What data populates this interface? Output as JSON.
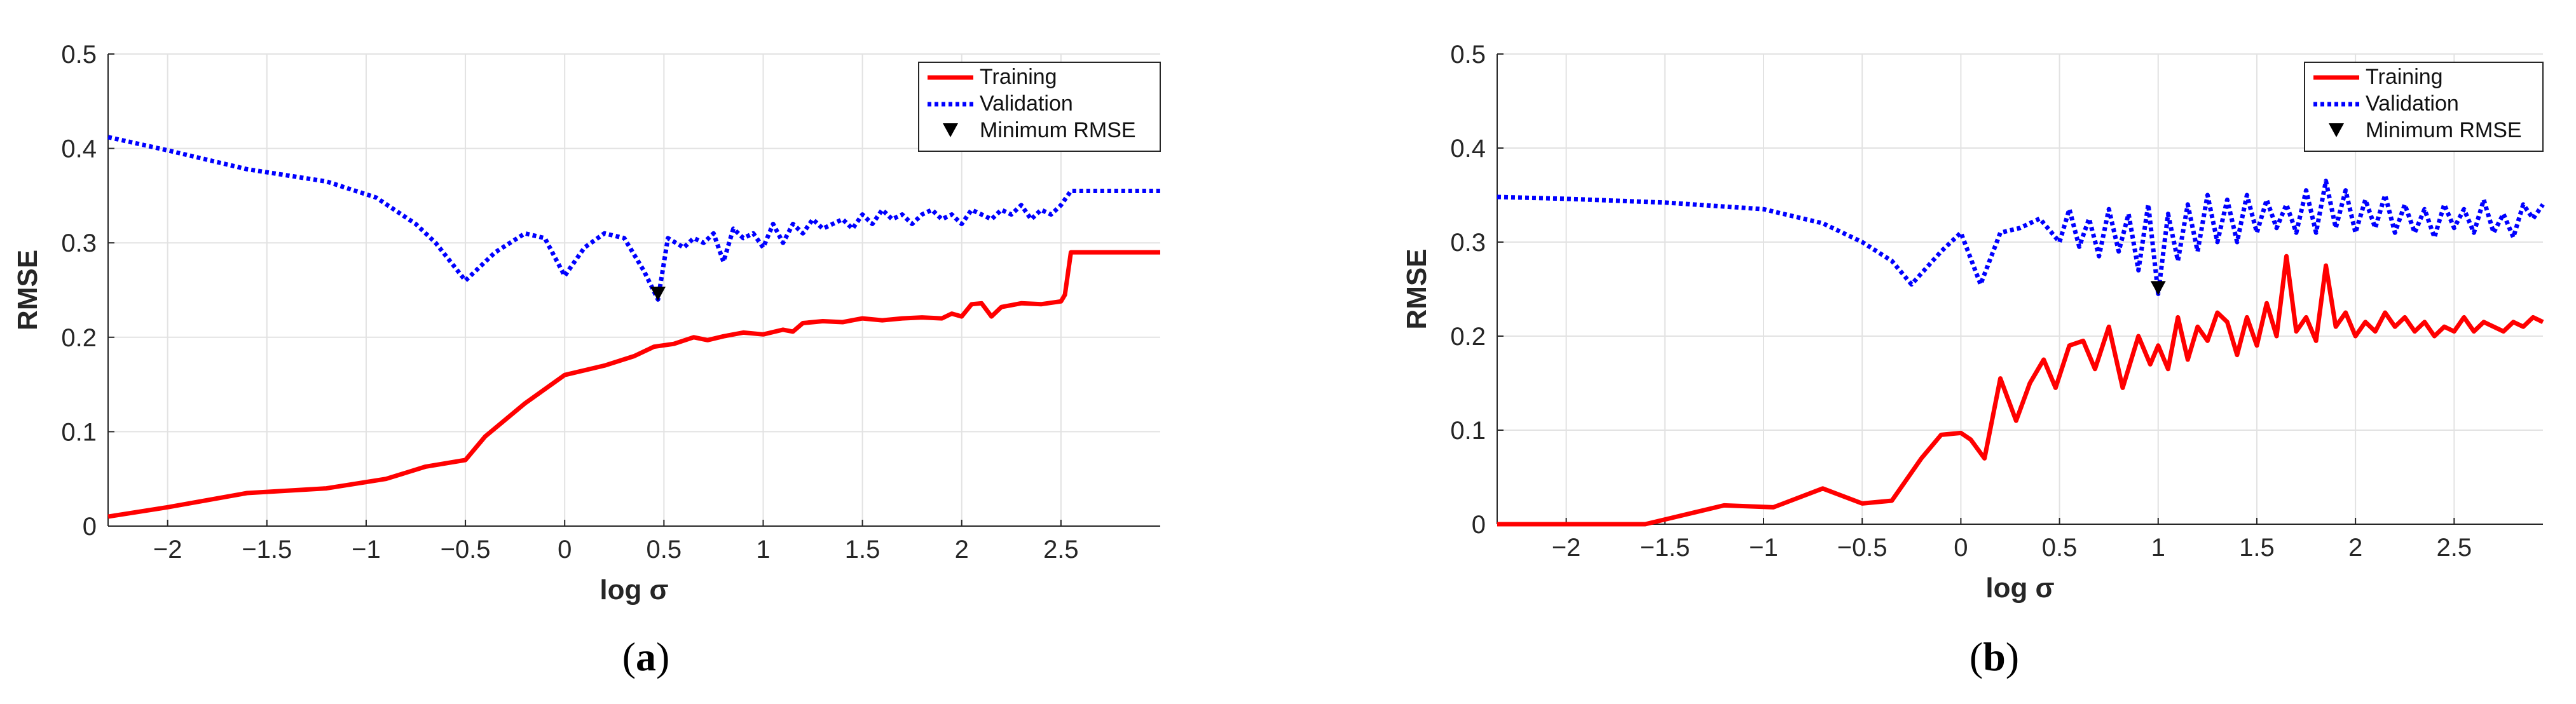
{
  "chart_data": [
    {
      "type": "line",
      "caption": "a",
      "xlabel": "log σ",
      "ylabel": "RMSE",
      "xlim": [
        -2.3,
        3.0
      ],
      "ylim": [
        0,
        0.5
      ],
      "xticks": [
        -2,
        -1.5,
        -1,
        -0.5,
        0,
        0.5,
        1,
        1.5,
        2,
        2.5
      ],
      "xtick_labels": [
        "−2",
        "−1.5",
        "−1",
        "−0.5",
        "0",
        "0.5",
        "1",
        "1.5",
        "2",
        "2.5"
      ],
      "yticks": [
        0,
        0.1,
        0.2,
        0.3,
        0.4,
        0.5
      ],
      "ytick_labels": [
        "0",
        "0.1",
        "0.2",
        "0.3",
        "0.4",
        "0.5"
      ],
      "grid": true,
      "legend_position": "top-right",
      "legend": [
        "Training",
        "Validation",
        "Minimum RMSE"
      ],
      "series": [
        {
          "name": "Training",
          "color": "#ff0000",
          "style": "solid",
          "x": [
            -2.3,
            -2.0,
            -1.6,
            -1.2,
            -0.9,
            -0.7,
            -0.5,
            -0.4,
            -0.2,
            0.0,
            0.2,
            0.35,
            0.45,
            0.55,
            0.65,
            0.72,
            0.8,
            0.9,
            1.0,
            1.1,
            1.15,
            1.2,
            1.3,
            1.4,
            1.5,
            1.6,
            1.7,
            1.8,
            1.9,
            1.95,
            2.0,
            2.05,
            2.1,
            2.15,
            2.2,
            2.25,
            2.3,
            2.4,
            2.5,
            2.52,
            2.55,
            2.6,
            2.8,
            3.0
          ],
          "y": [
            0.01,
            0.02,
            0.035,
            0.04,
            0.05,
            0.063,
            0.07,
            0.095,
            0.13,
            0.16,
            0.17,
            0.18,
            0.19,
            0.193,
            0.2,
            0.197,
            0.201,
            0.205,
            0.203,
            0.208,
            0.206,
            0.215,
            0.217,
            0.216,
            0.22,
            0.218,
            0.22,
            0.221,
            0.22,
            0.225,
            0.222,
            0.235,
            0.236,
            0.222,
            0.232,
            0.234,
            0.236,
            0.235,
            0.238,
            0.245,
            0.29,
            0.29,
            0.29,
            0.29
          ]
        },
        {
          "name": "Validation",
          "color": "#0000ff",
          "style": "dotted",
          "x": [
            -2.3,
            -2.0,
            -1.6,
            -1.2,
            -0.95,
            -0.75,
            -0.65,
            -0.5,
            -0.35,
            -0.2,
            -0.1,
            0.0,
            0.1,
            0.2,
            0.3,
            0.4,
            0.47,
            0.52,
            0.6,
            0.65,
            0.7,
            0.75,
            0.8,
            0.85,
            0.9,
            0.95,
            1.0,
            1.05,
            1.1,
            1.15,
            1.2,
            1.25,
            1.3,
            1.35,
            1.4,
            1.45,
            1.5,
            1.55,
            1.6,
            1.65,
            1.7,
            1.75,
            1.8,
            1.85,
            1.9,
            1.95,
            2.0,
            2.05,
            2.1,
            2.15,
            2.2,
            2.25,
            2.3,
            2.35,
            2.4,
            2.45,
            2.5,
            2.55,
            2.6,
            3.0
          ],
          "y": [
            0.412,
            0.398,
            0.378,
            0.365,
            0.348,
            0.32,
            0.3,
            0.26,
            0.29,
            0.31,
            0.305,
            0.265,
            0.295,
            0.31,
            0.305,
            0.27,
            0.24,
            0.305,
            0.295,
            0.305,
            0.3,
            0.31,
            0.28,
            0.315,
            0.305,
            0.31,
            0.295,
            0.32,
            0.3,
            0.32,
            0.31,
            0.325,
            0.315,
            0.32,
            0.325,
            0.315,
            0.33,
            0.32,
            0.335,
            0.325,
            0.33,
            0.32,
            0.33,
            0.335,
            0.325,
            0.33,
            0.32,
            0.335,
            0.33,
            0.325,
            0.335,
            0.33,
            0.34,
            0.325,
            0.335,
            0.33,
            0.34,
            0.355,
            0.355,
            0.355
          ]
        }
      ],
      "minimum_rmse": {
        "x": 0.47,
        "y": 0.24
      }
    },
    {
      "type": "line",
      "caption": "b",
      "xlabel": "log σ",
      "ylabel": "RMSE",
      "xlim": [
        -2.35,
        2.95
      ],
      "ylim": [
        0,
        0.5
      ],
      "xticks": [
        -2,
        -1.5,
        -1,
        -0.5,
        0,
        0.5,
        1,
        1.5,
        2,
        2.5
      ],
      "xtick_labels": [
        "−2",
        "−1.5",
        "−1",
        "−0.5",
        "0",
        "0.5",
        "1",
        "1.5",
        "2",
        "2.5"
      ],
      "yticks": [
        0,
        0.1,
        0.2,
        0.3,
        0.4,
        0.5
      ],
      "ytick_labels": [
        "0",
        "0.1",
        "0.2",
        "0.3",
        "0.4",
        "0.5"
      ],
      "grid": true,
      "legend_position": "top-right",
      "legend": [
        "Training",
        "Validation",
        "Minimum RMSE"
      ],
      "series": [
        {
          "name": "Training",
          "color": "#ff0000",
          "style": "solid",
          "x": [
            -2.35,
            -1.6,
            -1.5,
            -1.2,
            -0.95,
            -0.7,
            -0.5,
            -0.35,
            -0.2,
            -0.1,
            0.0,
            0.05,
            0.12,
            0.2,
            0.28,
            0.35,
            0.42,
            0.48,
            0.55,
            0.62,
            0.68,
            0.75,
            0.82,
            0.9,
            0.96,
            1.0,
            1.05,
            1.1,
            1.15,
            1.2,
            1.25,
            1.3,
            1.35,
            1.4,
            1.45,
            1.5,
            1.55,
            1.6,
            1.65,
            1.7,
            1.75,
            1.8,
            1.85,
            1.9,
            1.95,
            2.0,
            2.05,
            2.1,
            2.15,
            2.2,
            2.25,
            2.3,
            2.35,
            2.4,
            2.45,
            2.5,
            2.55,
            2.6,
            2.65,
            2.7,
            2.75,
            2.8,
            2.85,
            2.9,
            2.95
          ],
          "y": [
            0,
            0,
            0.005,
            0.02,
            0.018,
            0.038,
            0.022,
            0.025,
            0.07,
            0.095,
            0.097,
            0.09,
            0.07,
            0.155,
            0.11,
            0.15,
            0.175,
            0.145,
            0.19,
            0.195,
            0.165,
            0.21,
            0.145,
            0.2,
            0.17,
            0.19,
            0.165,
            0.22,
            0.175,
            0.21,
            0.195,
            0.225,
            0.215,
            0.18,
            0.22,
            0.19,
            0.235,
            0.2,
            0.285,
            0.205,
            0.22,
            0.195,
            0.275,
            0.21,
            0.225,
            0.2,
            0.215,
            0.205,
            0.225,
            0.21,
            0.22,
            0.205,
            0.215,
            0.2,
            0.21,
            0.205,
            0.22,
            0.205,
            0.215,
            0.21,
            0.205,
            0.215,
            0.21,
            0.22,
            0.215
          ]
        },
        {
          "name": "Validation",
          "color": "#0000ff",
          "style": "dotted",
          "x": [
            -2.35,
            -2.0,
            -1.5,
            -1.0,
            -0.7,
            -0.5,
            -0.35,
            -0.25,
            -0.1,
            0.0,
            0.1,
            0.2,
            0.3,
            0.4,
            0.5,
            0.55,
            0.6,
            0.65,
            0.7,
            0.75,
            0.8,
            0.85,
            0.9,
            0.95,
            1.0,
            1.05,
            1.1,
            1.15,
            1.2,
            1.25,
            1.3,
            1.35,
            1.4,
            1.45,
            1.5,
            1.55,
            1.6,
            1.65,
            1.7,
            1.75,
            1.8,
            1.85,
            1.9,
            1.95,
            2.0,
            2.05,
            2.1,
            2.15,
            2.2,
            2.25,
            2.3,
            2.35,
            2.4,
            2.45,
            2.5,
            2.55,
            2.6,
            2.65,
            2.7,
            2.75,
            2.8,
            2.85,
            2.9,
            2.95
          ],
          "y": [
            0.348,
            0.346,
            0.342,
            0.335,
            0.32,
            0.3,
            0.28,
            0.255,
            0.29,
            0.31,
            0.255,
            0.31,
            0.315,
            0.325,
            0.3,
            0.335,
            0.295,
            0.325,
            0.285,
            0.335,
            0.29,
            0.33,
            0.27,
            0.34,
            0.245,
            0.33,
            0.28,
            0.34,
            0.29,
            0.35,
            0.3,
            0.345,
            0.3,
            0.35,
            0.31,
            0.345,
            0.315,
            0.34,
            0.31,
            0.355,
            0.31,
            0.365,
            0.315,
            0.355,
            0.31,
            0.345,
            0.315,
            0.35,
            0.31,
            0.34,
            0.31,
            0.335,
            0.305,
            0.34,
            0.315,
            0.335,
            0.31,
            0.345,
            0.31,
            0.33,
            0.305,
            0.34,
            0.325,
            0.34
          ]
        }
      ],
      "minimum_rmse": {
        "x": 1.0,
        "y": 0.245
      }
    }
  ]
}
